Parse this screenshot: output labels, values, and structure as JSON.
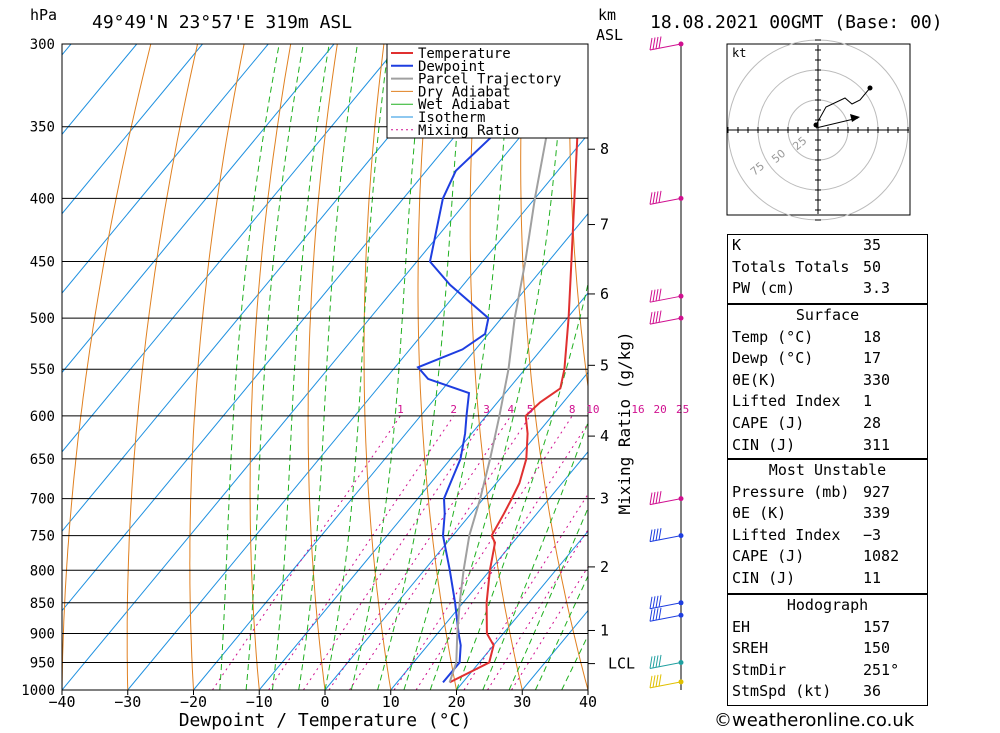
{
  "header": {
    "units_left": "hPa",
    "location": "49°49'N  23°57'E  319m  ASL",
    "units_km": "km",
    "units_asl": "ASL",
    "datetime": "18.08.2021  00GMT  (Base: 00)"
  },
  "chart_data": {
    "type": "line",
    "title": "49°49'N  23°57'E  319m  ASL",
    "xlabel": "Dewpoint / Temperature (°C)",
    "ylabel": "hPa",
    "right_axis_label": "Mixing Ratio (g/kg)",
    "xlim": [
      -40,
      40
    ],
    "ylim": [
      1000,
      300
    ],
    "x_ticks": [
      "−40",
      "−30",
      "−20",
      "−10",
      "0",
      "10",
      "20",
      "30",
      "40"
    ],
    "pressure_levels": [
      300,
      350,
      400,
      450,
      500,
      550,
      600,
      650,
      700,
      750,
      800,
      850,
      900,
      950,
      1000
    ],
    "km_ticks": [
      {
        "label": "8",
        "p": 365
      },
      {
        "label": "7",
        "p": 420
      },
      {
        "label": "6",
        "p": 478
      },
      {
        "label": "5",
        "p": 546
      },
      {
        "label": "4",
        "p": 623
      },
      {
        "label": "3",
        "p": 700
      },
      {
        "label": "2",
        "p": 795
      },
      {
        "label": "1",
        "p": 895
      }
    ],
    "lcl": {
      "label": "LCL",
      "p": 952
    },
    "mixing_ratio_labels": [
      "1",
      "2",
      "3",
      "4",
      "5",
      "8",
      "10",
      "16",
      "20",
      "25"
    ],
    "legend": [
      "Temperature",
      "Dewpoint",
      "Parcel Trajectory",
      "Dry Adiabat",
      "Wet Adiabat",
      "Isotherm",
      "Mixing Ratio"
    ],
    "colors": {
      "temperature": "#e03030",
      "dewpoint": "#1e3ee0",
      "parcel": "#a0a0a0",
      "dry_adiabat": "#e08020",
      "wet_adiabat": "#20b020",
      "isotherm": "#1e90e0",
      "mixing_ratio": "#d01090"
    },
    "series": [
      {
        "name": "Temperature",
        "points": [
          [
            986,
            18
          ],
          [
            950,
            21.5
          ],
          [
            920,
            20
          ],
          [
            900,
            17.5
          ],
          [
            850,
            13.6
          ],
          [
            800,
            10.0
          ],
          [
            760,
            7.3
          ],
          [
            750,
            5.9
          ],
          [
            720,
            5.0
          ],
          [
            700,
            4.3
          ],
          [
            680,
            3.5
          ],
          [
            650,
            1.5
          ],
          [
            620,
            -1.5
          ],
          [
            600,
            -4.0
          ],
          [
            585,
            -3.5
          ],
          [
            570,
            -2.2
          ],
          [
            550,
            -4.0
          ],
          [
            500,
            -9.8
          ],
          [
            450,
            -16.5
          ],
          [
            400,
            -24.0
          ],
          [
            350,
            -32.5
          ],
          [
            300,
            -43.0
          ]
        ]
      },
      {
        "name": "Dewpoint",
        "points": [
          [
            986,
            17
          ],
          [
            950,
            17
          ],
          [
            920,
            15
          ],
          [
            900,
            13.2
          ],
          [
            850,
            8.8
          ],
          [
            800,
            3.9
          ],
          [
            750,
            -1.5
          ],
          [
            720,
            -4.0
          ],
          [
            700,
            -6.0
          ],
          [
            680,
            -7.0
          ],
          [
            650,
            -8.5
          ],
          [
            620,
            -11.0
          ],
          [
            600,
            -13.0
          ],
          [
            575,
            -15.5
          ],
          [
            560,
            -23.5
          ],
          [
            548,
            -26.5
          ],
          [
            530,
            -22.0
          ],
          [
            515,
            -20.5
          ],
          [
            500,
            -22.0
          ],
          [
            470,
            -32.0
          ],
          [
            450,
            -38.0
          ],
          [
            400,
            -44.0
          ],
          [
            380,
            -45.5
          ],
          [
            350,
            -44.0
          ],
          [
            320,
            -48.0
          ],
          [
            300,
            -50.0
          ]
        ]
      },
      {
        "name": "Parcel Trajectory",
        "points": [
          [
            986,
            18
          ],
          [
            950,
            16.5
          ],
          [
            900,
            13.0
          ],
          [
            850,
            9.5
          ],
          [
            800,
            6.0
          ],
          [
            750,
            2.5
          ],
          [
            700,
            -0.5
          ],
          [
            650,
            -4.0
          ],
          [
            600,
            -8.0
          ],
          [
            550,
            -12.5
          ],
          [
            500,
            -18.0
          ],
          [
            450,
            -23.5
          ],
          [
            400,
            -30.0
          ],
          [
            350,
            -37.0
          ],
          [
            300,
            -45.5
          ]
        ]
      }
    ],
    "wind_barb_levels": [
      300,
      400,
      480,
      500,
      700,
      750,
      850,
      870,
      950,
      985
    ]
  },
  "hodograph": {
    "unit": "kt",
    "ring_labels": [
      "25",
      "50",
      "75"
    ]
  },
  "indices": {
    "general": [
      {
        "name": "K",
        "value": "35"
      },
      {
        "name": "Totals Totals",
        "value": "50"
      },
      {
        "name": "PW (cm)",
        "value": "3.3"
      }
    ],
    "surface_title": "Surface",
    "surface": [
      {
        "name": "Temp (°C)",
        "value": "18"
      },
      {
        "name": "Dewp (°C)",
        "value": "17"
      },
      {
        "name": "θE(K)",
        "value": "330"
      },
      {
        "name": "Lifted Index",
        "value": "1"
      },
      {
        "name": "CAPE (J)",
        "value": "28"
      },
      {
        "name": "CIN (J)",
        "value": "311"
      }
    ],
    "mu_title": "Most Unstable",
    "mu": [
      {
        "name": "Pressure (mb)",
        "value": "927"
      },
      {
        "name": "θE (K)",
        "value": "339"
      },
      {
        "name": "Lifted Index",
        "value": "−3"
      },
      {
        "name": "CAPE (J)",
        "value": "1082"
      },
      {
        "name": "CIN (J)",
        "value": "11"
      }
    ],
    "hodo_title": "Hodograph",
    "hodo": [
      {
        "name": "EH",
        "value": "157"
      },
      {
        "name": "SREH",
        "value": "150"
      },
      {
        "name": "StmDir",
        "value": "251°"
      },
      {
        "name": "StmSpd (kt)",
        "value": "36"
      }
    ]
  },
  "footer": "©weatheronline.co.uk"
}
